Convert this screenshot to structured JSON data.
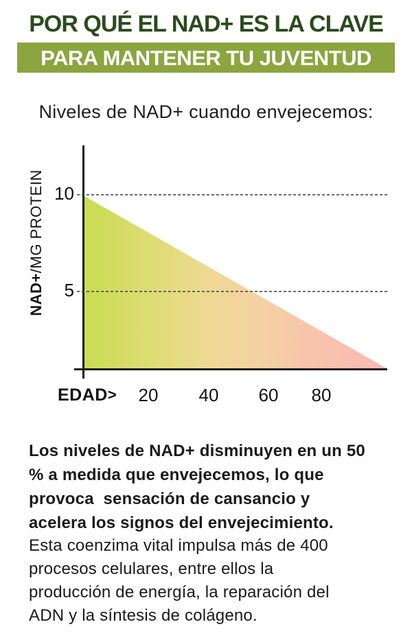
{
  "header": {
    "title_line1": "POR QUÉ EL NAD+ ES LA CLAVE",
    "title_line2": "PARA MANTENER TU JUVENTUD"
  },
  "subtitle": "Niveles de NAD+ cuando envejecemos:",
  "ui": {
    "x_axis_arrow": ">"
  },
  "chart_data": {
    "type": "area",
    "title": "Niveles de NAD+ cuando envejecemos:",
    "xlabel": "EDAD",
    "ylabel": "NAD+/MG PROTEIN",
    "ylabel_bold": "NAD+",
    "ylabel_rest": "/MG PROTEIN",
    "x": [
      0,
      100
    ],
    "y": [
      10,
      0
    ],
    "x_ticks": [
      20,
      40,
      60,
      80
    ],
    "y_ticks": [
      10,
      5
    ],
    "xlim": [
      0,
      100
    ],
    "ylim": [
      0,
      12
    ],
    "grid": {
      "style": "dashed",
      "axis": "y",
      "at": [
        10,
        5
      ]
    },
    "legend": "none",
    "fill_gradient": [
      "#C9DD52",
      "#EFD995",
      "#F9B9B4"
    ]
  },
  "paragraphs": {
    "bold_paragraph": "Los niveles de NAD+ disminuyen en un 50\n% a medida que envejecemos, lo que\nprovoca  sensación de cansancio y\nacelera los signos del envejecimiento.",
    "regular_paragraph": "Esta coenzima vital impulsa más de 400\nprocesos celulares, entre ellos la\nproducción de energía, la reparación del\nADN y la síntesis de colágeno."
  },
  "colors": {
    "title_green": "#2B4A1D",
    "banner_green": "#8CA53F",
    "text_dark": "#1A1A1A",
    "gradient_start": "#C9DD52",
    "gradient_mid": "#EFD995",
    "gradient_end": "#F9B9B4",
    "axis_black": "#161616",
    "gridline_gray": "#4F4F4F"
  }
}
